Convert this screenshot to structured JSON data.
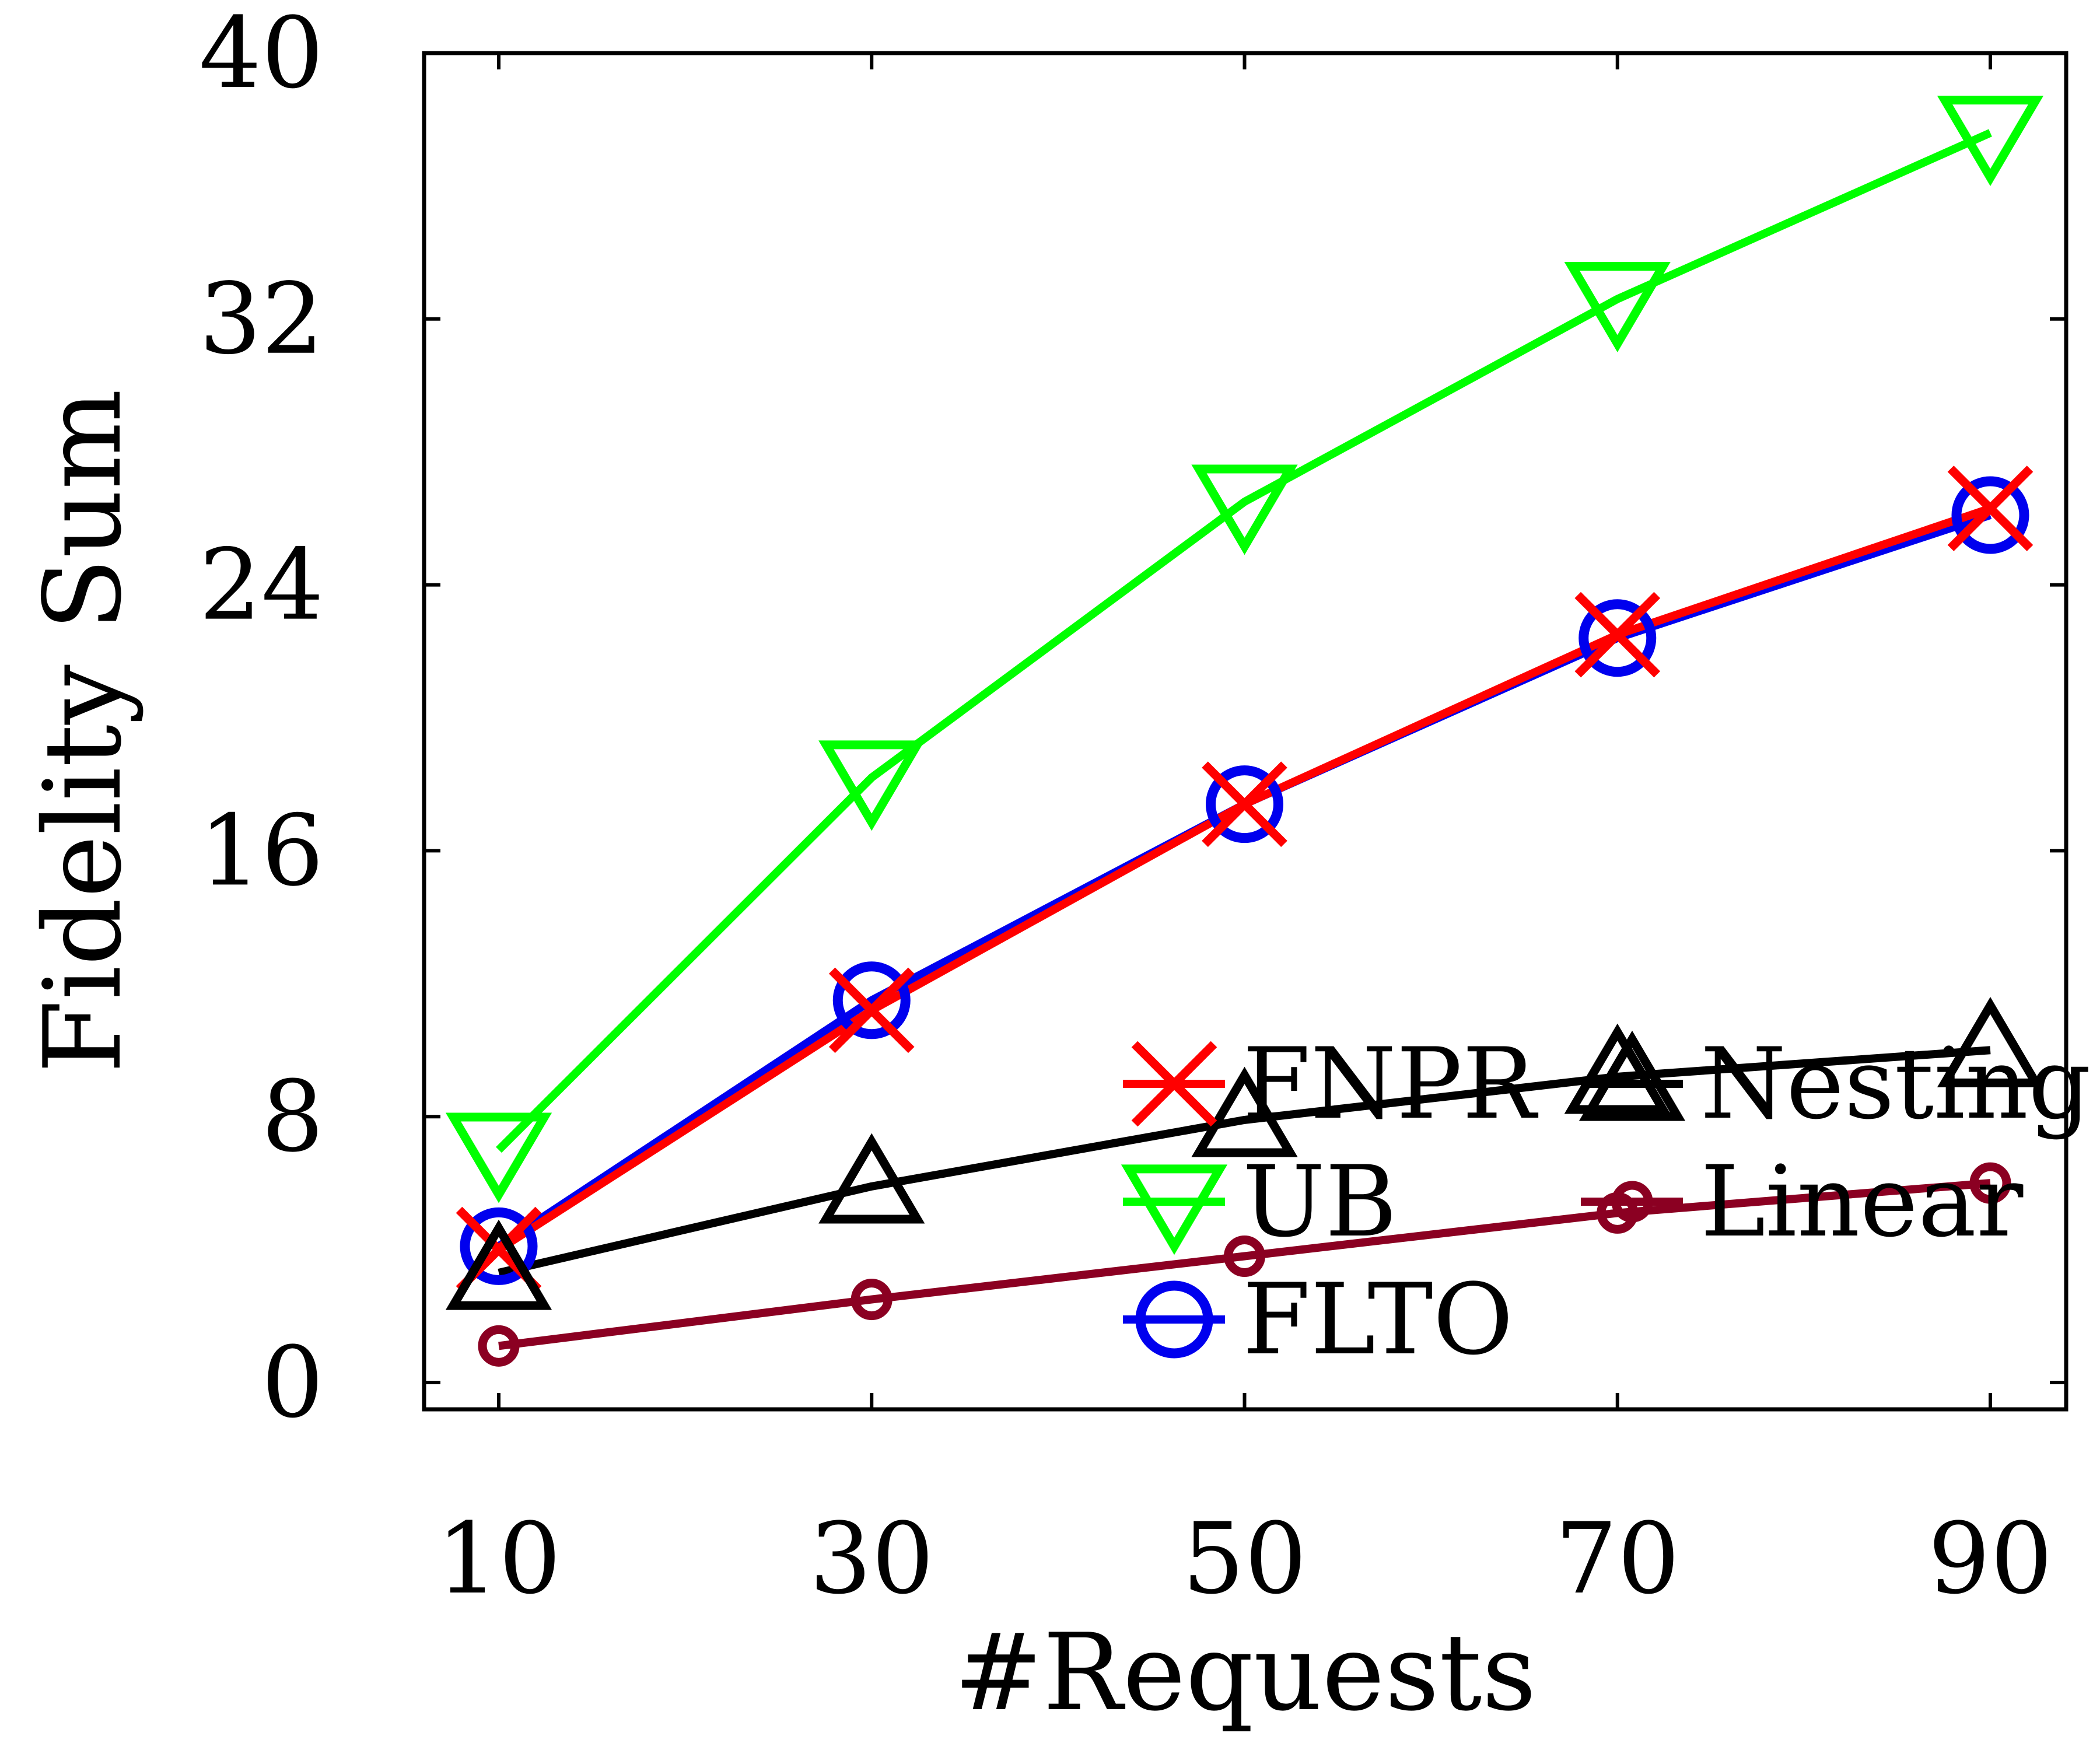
{
  "chart_data": {
    "type": "line",
    "title": "",
    "xlabel": "#Requests",
    "ylabel": "Fidelity Sum",
    "x": [
      10,
      30,
      50,
      70,
      90
    ],
    "xticks": [
      "10",
      "30",
      "50",
      "70",
      "90"
    ],
    "yticks": [
      "0",
      "8",
      "16",
      "24",
      "32",
      "40"
    ],
    "ylim": [
      0,
      40
    ],
    "grid": false,
    "legend_position": "bottom-right",
    "series": [
      {
        "name": "UB",
        "color": "#00ff00",
        "marker": "triangle-down",
        "values": [
          7.0,
          18.2,
          26.5,
          32.6,
          37.6
        ]
      },
      {
        "name": "FLTO",
        "color": "#0000ee",
        "marker": "circle",
        "values": [
          4.1,
          11.5,
          17.4,
          22.4,
          26.1
        ]
      },
      {
        "name": "FNPR",
        "color": "#ff0000",
        "marker": "x",
        "values": [
          4.0,
          11.2,
          17.4,
          22.5,
          26.3
        ]
      },
      {
        "name": "Nesting",
        "color": "#000000",
        "marker": "triangle-up",
        "values": [
          3.3,
          5.9,
          7.9,
          9.2,
          10.0
        ]
      },
      {
        "name": "Linear",
        "color": "#8b0022",
        "marker": "small-circle",
        "values": [
          1.1,
          2.5,
          3.8,
          5.1,
          6.0
        ]
      }
    ],
    "legend_layout": [
      [
        "FNPR",
        "Nesting"
      ],
      [
        "UB",
        "Linear"
      ],
      [
        "FLTO"
      ]
    ]
  }
}
